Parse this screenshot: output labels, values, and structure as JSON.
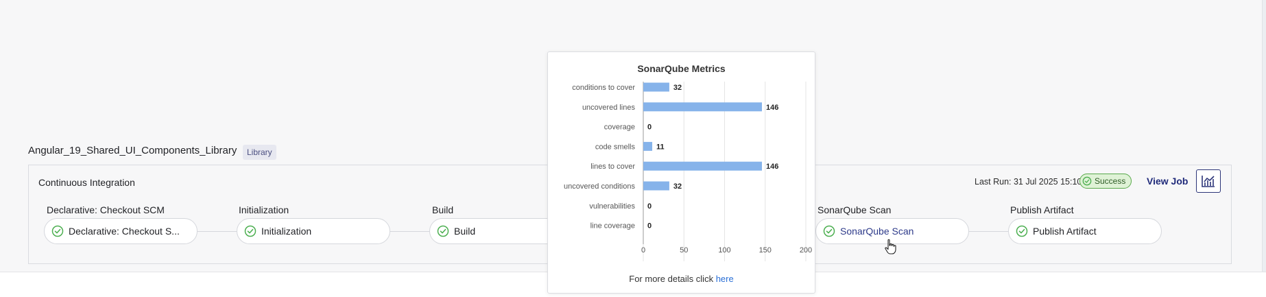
{
  "project": {
    "name": "Angular_19_Shared_UI_Components_Library",
    "badge": "Library"
  },
  "ci": {
    "title": "Continuous Integration",
    "last_run": "Last Run: 31 Jul 2025 15:10",
    "status": "Success",
    "view_job": "View Job",
    "stages": [
      {
        "label": "Declarative: Checkout SCM",
        "pill": "Declarative: Checkout S..."
      },
      {
        "label": "Initialization",
        "pill": "Initialization"
      },
      {
        "label": "Build",
        "pill": "Build"
      },
      {
        "label": "SonarQube Scan",
        "pill": "SonarQube Scan"
      },
      {
        "label": "Publish Artifact",
        "pill": "Publish Artifact"
      }
    ]
  },
  "popup": {
    "title": "SonarQube Metrics",
    "footer_text": "For more details click",
    "footer_link": "here"
  },
  "colors": {
    "bar": "#86b3ea",
    "success": "#4caf50",
    "accent": "#1f2a7a"
  },
  "chart_data": {
    "type": "bar",
    "orientation": "horizontal",
    "title": "SonarQube Metrics",
    "categories": [
      "conditions to cover",
      "uncovered lines",
      "coverage",
      "code smells",
      "lines to cover",
      "uncovered conditions",
      "vulnerabilities",
      "line coverage"
    ],
    "values": [
      32,
      146,
      0,
      11,
      146,
      32,
      0,
      0
    ],
    "xlim": [
      0,
      200
    ],
    "xticks": [
      0,
      50,
      100,
      150,
      200
    ],
    "grid": true
  }
}
